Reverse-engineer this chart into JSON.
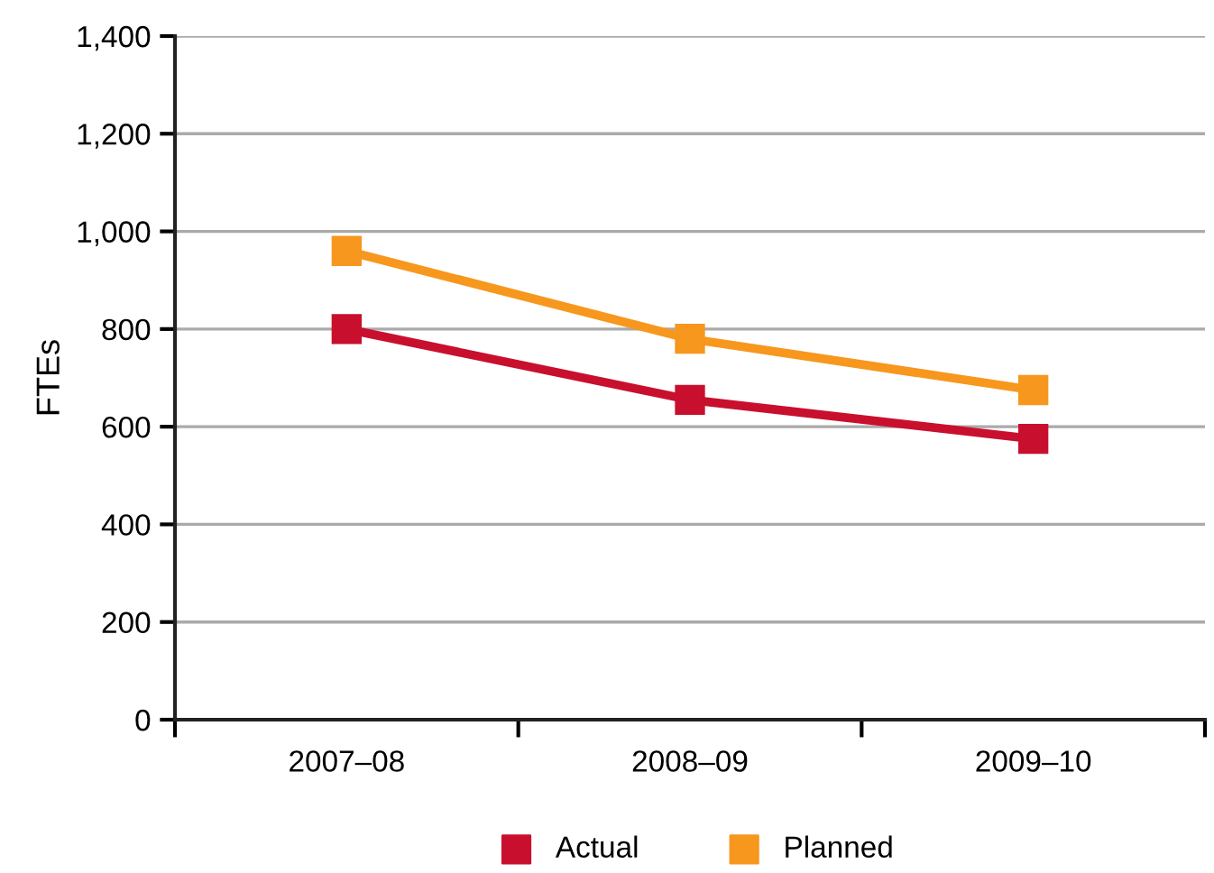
{
  "chart_data": {
    "type": "line",
    "ylabel": "FTEs",
    "categories": [
      "2007–08",
      "2008–09",
      "2009–10"
    ],
    "series": [
      {
        "name": "Actual",
        "color": "#c8102e",
        "values": [
          800,
          655,
          575
        ]
      },
      {
        "name": "Planned",
        "color": "#f7971e",
        "values": [
          960,
          780,
          675
        ]
      }
    ],
    "ylim": [
      0,
      1400
    ],
    "yticks": [
      {
        "value": 0,
        "label": "0"
      },
      {
        "value": 200,
        "label": "200"
      },
      {
        "value": 400,
        "label": "400"
      },
      {
        "value": 600,
        "label": "600"
      },
      {
        "value": 800,
        "label": "800"
      },
      {
        "value": 1000,
        "label": "1,000"
      },
      {
        "value": 1200,
        "label": "1,200"
      },
      {
        "value": 1400,
        "label": "1,400"
      }
    ],
    "grid": "y",
    "legend": "bottom",
    "marker": "square",
    "line_style": "solid"
  }
}
